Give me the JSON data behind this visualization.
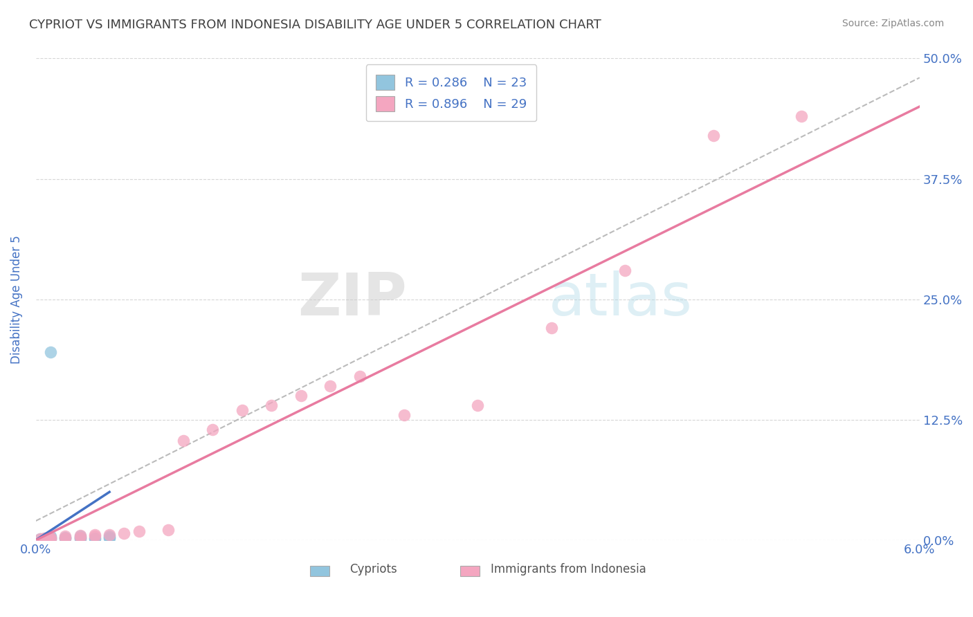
{
  "title": "CYPRIOT VS IMMIGRANTS FROM INDONESIA DISABILITY AGE UNDER 5 CORRELATION CHART",
  "source": "Source: ZipAtlas.com",
  "ylabel": "Disability Age Under 5",
  "xlim": [
    0.0,
    0.06
  ],
  "ylim": [
    0.0,
    0.5
  ],
  "yticks": [
    0.0,
    0.125,
    0.25,
    0.375,
    0.5
  ],
  "ytick_labels": [
    "0.0%",
    "12.5%",
    "25.0%",
    "37.5%",
    "50.0%"
  ],
  "xticks": [
    0.0,
    0.015,
    0.03,
    0.045,
    0.06
  ],
  "xtick_labels": [
    "0.0%",
    "",
    "",
    "",
    "6.0%"
  ],
  "legend_R1": "R = 0.286",
  "legend_N1": "N = 23",
  "legend_R2": "R = 0.896",
  "legend_N2": "N = 29",
  "cypriot_color": "#92C5DE",
  "indonesia_color": "#F4A6C0",
  "cypriot_line_color": "#4472C4",
  "indonesia_line_color": "#E87BA0",
  "background_color": "#FFFFFF",
  "title_color": "#404040",
  "axis_label_color": "#4472C4",
  "tick_color": "#4472C4",
  "cypriot_x": [
    0.0003,
    0.0005,
    0.0006,
    0.0007,
    0.0008,
    0.0009,
    0.001,
    0.001,
    0.001,
    0.001,
    0.002,
    0.002,
    0.002,
    0.003,
    0.003,
    0.003,
    0.003,
    0.004,
    0.004,
    0.005,
    0.005,
    0.005,
    0.001
  ],
  "cypriot_y": [
    0.001,
    0.001,
    0.002,
    0.001,
    0.001,
    0.002,
    0.001,
    0.002,
    0.003,
    0.004,
    0.002,
    0.002,
    0.003,
    0.001,
    0.002,
    0.003,
    0.004,
    0.001,
    0.002,
    0.002,
    0.003,
    0.004,
    0.195
  ],
  "indonesia_x": [
    0.0003,
    0.0005,
    0.0006,
    0.0008,
    0.001,
    0.001,
    0.002,
    0.002,
    0.003,
    0.003,
    0.004,
    0.004,
    0.005,
    0.006,
    0.007,
    0.009,
    0.01,
    0.012,
    0.014,
    0.016,
    0.018,
    0.02,
    0.022,
    0.025,
    0.03,
    0.035,
    0.04,
    0.046,
    0.052
  ],
  "indonesia_y": [
    0.001,
    0.001,
    0.002,
    0.002,
    0.001,
    0.003,
    0.002,
    0.004,
    0.003,
    0.005,
    0.004,
    0.006,
    0.006,
    0.007,
    0.009,
    0.011,
    0.103,
    0.115,
    0.135,
    0.14,
    0.15,
    0.16,
    0.17,
    0.13,
    0.14,
    0.22,
    0.28,
    0.42,
    0.44
  ],
  "cy_line_x": [
    0.0,
    0.005
  ],
  "cy_line_y": [
    0.0,
    0.05
  ],
  "id_line_x": [
    0.0,
    0.06
  ],
  "id_line_y": [
    0.0,
    0.45
  ],
  "gray_line_x": [
    0.0,
    0.06
  ],
  "gray_line_y": [
    0.02,
    0.48
  ]
}
